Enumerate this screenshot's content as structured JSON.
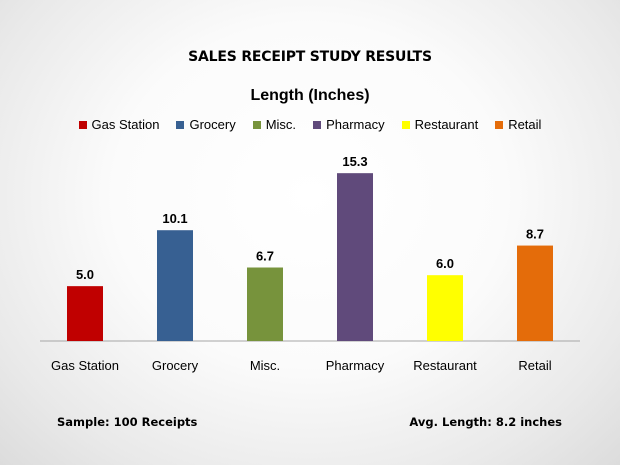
{
  "title": "SALES RECEIPT STUDY RESULTS",
  "footer": {
    "sample": "Sample: 100 Receipts",
    "avg": "Avg. Length: 8.2 inches"
  },
  "chart_data": {
    "type": "bar",
    "title": "Length (Inches)",
    "categories": [
      "Gas Station",
      "Grocery",
      "Misc.",
      "Pharmacy",
      "Restaurant",
      "Retail"
    ],
    "values": [
      5.0,
      10.1,
      6.7,
      15.3,
      6.0,
      8.7
    ],
    "value_labels": [
      "5.0",
      "10.1",
      "6.7",
      "15.3",
      "6.0",
      "8.7"
    ],
    "colors": [
      "#c00000",
      "#376092",
      "#77933c",
      "#604a7b",
      "#ffff00",
      "#e46c0a"
    ],
    "ylim": [
      0,
      16.5
    ],
    "grid": false,
    "legend": "top"
  }
}
